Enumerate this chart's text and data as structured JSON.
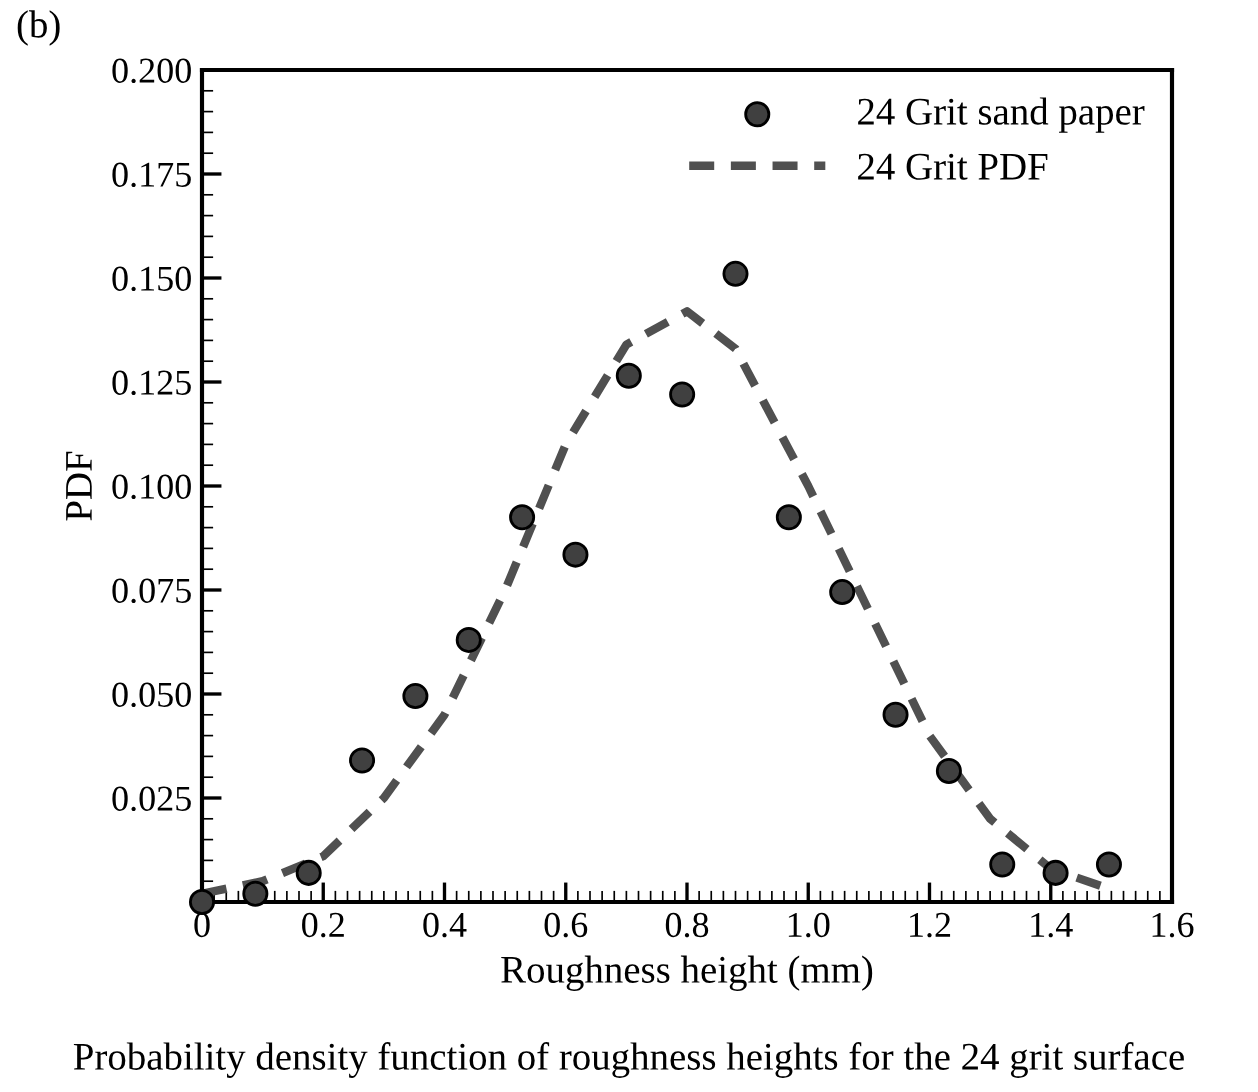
{
  "chart_data": {
    "type": "scatter",
    "xlabel": "Roughness height (mm)",
    "ylabel": "PDF",
    "annotations": [
      "(b)",
      "Probability density function of roughness heights for the 24 grit surface"
    ],
    "xlim": [
      0,
      1.6
    ],
    "ylim": [
      0,
      0.2
    ],
    "xticks": [
      0,
      0.2,
      0.4,
      0.6,
      0.8,
      {
        "value": 1,
        "label": "1.0"
      },
      1.2,
      1.4,
      1.6
    ],
    "yticks": [
      {
        "value": 0,
        "label": null
      },
      0.025,
      {
        "value": 0.05,
        "label": "0.050"
      },
      0.075,
      {
        "value": 0.1,
        "label": "0.100"
      },
      0.125,
      {
        "value": 0.15,
        "label": "0.150"
      },
      0.175,
      {
        "value": 0.2,
        "label": "0.200"
      }
    ],
    "legend": "top right",
    "grid": false,
    "series": [
      {
        "name": "24 Grit sand paper",
        "marker": "circle",
        "color": "#404040",
        "x": [
          0.0,
          0.088,
          0.176,
          0.264,
          0.352,
          0.44,
          0.528,
          0.616,
          0.704,
          0.792,
          0.88,
          0.968,
          1.056,
          1.144,
          1.232,
          1.32,
          1.408,
          1.496
        ],
        "values": [
          0.0,
          0.002,
          0.007,
          0.034,
          0.0495,
          0.063,
          0.0925,
          0.0835,
          0.1265,
          0.122,
          0.151,
          0.0925,
          0.0745,
          0.045,
          0.0315,
          0.009,
          0.007,
          0.009
        ]
      },
      {
        "name": "24 Grit PDF",
        "type": "line",
        "line_style": "dashed",
        "color": "#505050",
        "x": [
          0.0,
          0.1,
          0.2,
          0.3,
          0.4,
          0.5,
          0.6,
          0.7,
          0.8,
          0.88,
          1.0,
          1.1,
          1.2,
          1.3,
          1.4,
          1.5
        ],
        "values": [
          0.002,
          0.005,
          0.011,
          0.025,
          0.045,
          0.075,
          0.11,
          0.134,
          0.142,
          0.133,
          0.1,
          0.07,
          0.04,
          0.02,
          0.008,
          0.003
        ]
      }
    ]
  }
}
